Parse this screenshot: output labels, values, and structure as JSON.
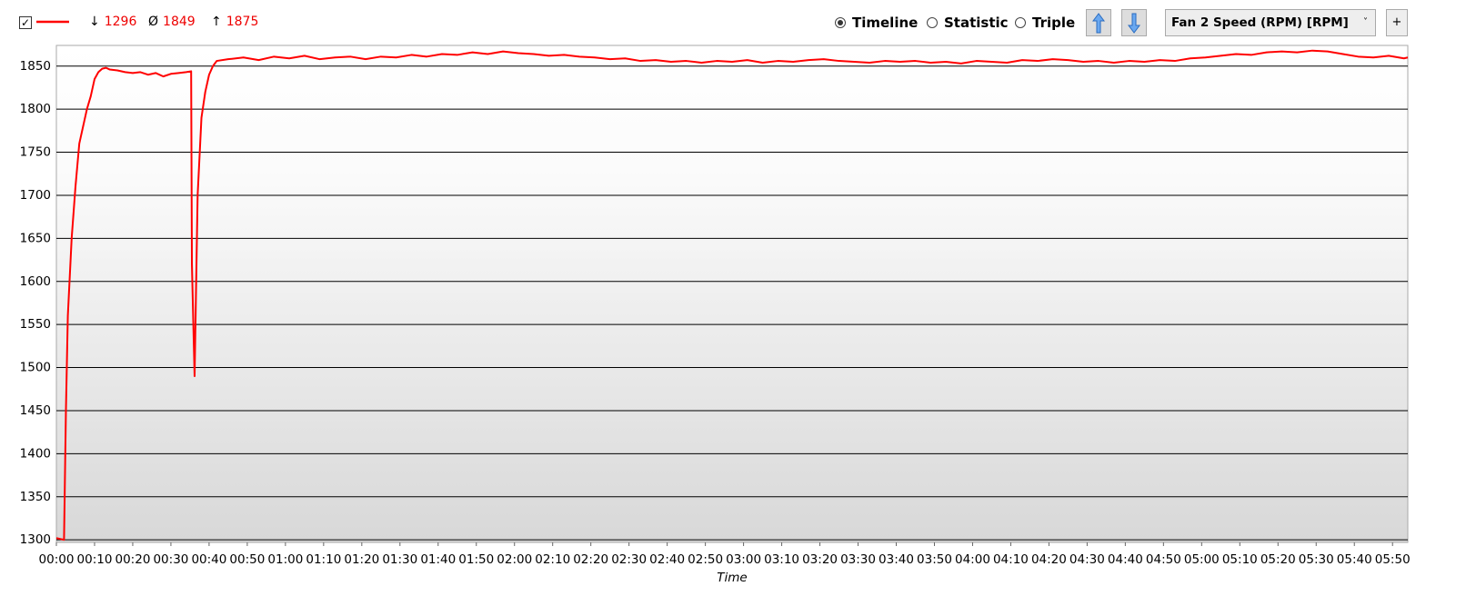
{
  "toolbar": {
    "checked": true,
    "stats": [
      {
        "symbol": "↓",
        "value": 1296
      },
      {
        "symbol": "Ø",
        "value": 1849
      },
      {
        "symbol": "↑",
        "value": 1875
      }
    ],
    "views": [
      {
        "label": "Timeline",
        "selected": true
      },
      {
        "label": "Statistic",
        "selected": false
      },
      {
        "label": "Triple",
        "selected": false
      }
    ],
    "sensor": "Fan 2 Speed (RPM) [RPM]",
    "add_button": "+"
  },
  "chart_data": {
    "type": "line",
    "x_label": "Time",
    "x": [
      0,
      1,
      2,
      2.5,
      3,
      4,
      5,
      6,
      7,
      8,
      9,
      10,
      11,
      12,
      13,
      14,
      16,
      18,
      20,
      22,
      24,
      26,
      28,
      30,
      32,
      34,
      35.3,
      35.5,
      36.2,
      37,
      38,
      39,
      40,
      41,
      42,
      45,
      49,
      53,
      57,
      61,
      65,
      69,
      73,
      77,
      81,
      85,
      89,
      93,
      97,
      101,
      105,
      109,
      113,
      117,
      121,
      125,
      129,
      133,
      137,
      141,
      145,
      149,
      153,
      157,
      161,
      165,
      169,
      173,
      177,
      181,
      185,
      189,
      193,
      197,
      201,
      205,
      209,
      213,
      217,
      221,
      225,
      229,
      233,
      237,
      241,
      245,
      249,
      253,
      257,
      261,
      265,
      269,
      273,
      277,
      281,
      285,
      289,
      293,
      297,
      301,
      305,
      309,
      313,
      317,
      321,
      325,
      329,
      333,
      337,
      341,
      345,
      349,
      353,
      354
    ],
    "series": [
      {
        "color": "#ff0000",
        "values": [
          1302,
          1301,
          1300,
          1450,
          1560,
          1650,
          1710,
          1760,
          1780,
          1800,
          1815,
          1835,
          1843,
          1847,
          1848,
          1846,
          1845,
          1843,
          1842,
          1843,
          1840,
          1842,
          1838,
          1841,
          1842,
          1843,
          1844,
          1620,
          1490,
          1700,
          1790,
          1820,
          1840,
          1850,
          1856,
          1858,
          1860,
          1857,
          1861,
          1859,
          1862,
          1858,
          1860,
          1861,
          1858,
          1861,
          1860,
          1863,
          1861,
          1864,
          1863,
          1866,
          1864,
          1867,
          1865,
          1864,
          1862,
          1863,
          1861,
          1860,
          1858,
          1859,
          1856,
          1857,
          1855,
          1856,
          1854,
          1856,
          1855,
          1857,
          1854,
          1856,
          1855,
          1857,
          1858,
          1856,
          1855,
          1854,
          1856,
          1855,
          1856,
          1854,
          1855,
          1853,
          1856,
          1855,
          1854,
          1857,
          1856,
          1858,
          1857,
          1855,
          1856,
          1854,
          1856,
          1855,
          1857,
          1856,
          1859,
          1860,
          1862,
          1864,
          1863,
          1866,
          1867,
          1866,
          1868,
          1867,
          1864,
          1861,
          1860,
          1862,
          1859,
          1860
        ]
      }
    ],
    "xlim": [
      0,
      354
    ],
    "ylim": [
      1297,
      1874
    ],
    "xticks": [
      {
        "value": 0,
        "label": "00:00"
      },
      {
        "value": 10,
        "label": "00:10"
      },
      {
        "value": 20,
        "label": "00:20"
      },
      {
        "value": 30,
        "label": "00:30"
      },
      {
        "value": 40,
        "label": "00:40"
      },
      {
        "value": 50,
        "label": "00:50"
      },
      {
        "value": 60,
        "label": "01:00"
      },
      {
        "value": 70,
        "label": "01:10"
      },
      {
        "value": 80,
        "label": "01:20"
      },
      {
        "value": 90,
        "label": "01:30"
      },
      {
        "value": 100,
        "label": "01:40"
      },
      {
        "value": 110,
        "label": "01:50"
      },
      {
        "value": 120,
        "label": "02:00"
      },
      {
        "value": 130,
        "label": "02:10"
      },
      {
        "value": 140,
        "label": "02:20"
      },
      {
        "value": 150,
        "label": "02:30"
      },
      {
        "value": 160,
        "label": "02:40"
      },
      {
        "value": 170,
        "label": "02:50"
      },
      {
        "value": 180,
        "label": "03:00"
      },
      {
        "value": 190,
        "label": "03:10"
      },
      {
        "value": 200,
        "label": "03:20"
      },
      {
        "value": 210,
        "label": "03:30"
      },
      {
        "value": 220,
        "label": "03:40"
      },
      {
        "value": 230,
        "label": "03:50"
      },
      {
        "value": 240,
        "label": "04:00"
      },
      {
        "value": 250,
        "label": "04:10"
      },
      {
        "value": 260,
        "label": "04:20"
      },
      {
        "value": 270,
        "label": "04:30"
      },
      {
        "value": 280,
        "label": "04:40"
      },
      {
        "value": 290,
        "label": "04:50"
      },
      {
        "value": 300,
        "label": "05:00"
      },
      {
        "value": 310,
        "label": "05:10"
      },
      {
        "value": 320,
        "label": "05:20"
      },
      {
        "value": 330,
        "label": "05:30"
      },
      {
        "value": 340,
        "label": "05:40"
      },
      {
        "value": 350,
        "label": "05:50"
      }
    ],
    "yticks": [
      1300,
      1350,
      1400,
      1450,
      1500,
      1550,
      1600,
      1650,
      1700,
      1750,
      1800,
      1850
    ],
    "grid": true
  }
}
